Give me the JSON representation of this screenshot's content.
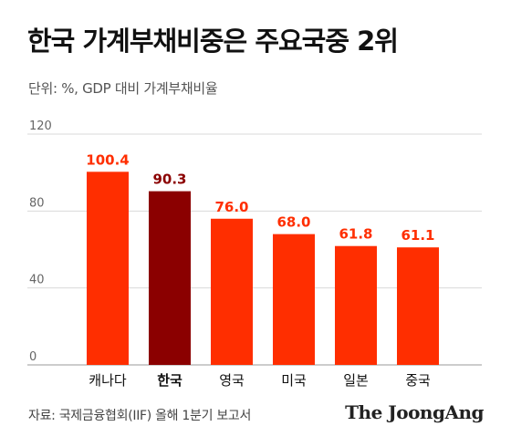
{
  "chart_data": {
    "type": "bar",
    "title": "한국 가계부채비중은 주요국중 2위",
    "subtitle": "단위: %, GDP 대비 가계부채비율",
    "categories": [
      "캐나다",
      "한국",
      "영국",
      "미국",
      "일본",
      "중국"
    ],
    "values": [
      100.4,
      90.3,
      76.0,
      68.0,
      61.8,
      61.1
    ],
    "value_labels": [
      "100.4",
      "90.3",
      "76.0",
      "68.0",
      "61.8",
      "61.1"
    ],
    "highlight_index": 1,
    "ylim": [
      0,
      120
    ],
    "yticks": [
      0,
      40,
      80,
      120
    ],
    "grid": true,
    "xlabel": "",
    "ylabel": "",
    "colors": {
      "bar": "#ff2e00",
      "highlight": "#8b0000",
      "label": "#ff2e00",
      "grid": "#d9d9d9",
      "axis_text": "#666666"
    }
  },
  "footer": {
    "source": "자료: 국제금융협회(IIF) 올해 1분기 보고서",
    "brand": "The JoongAng"
  }
}
